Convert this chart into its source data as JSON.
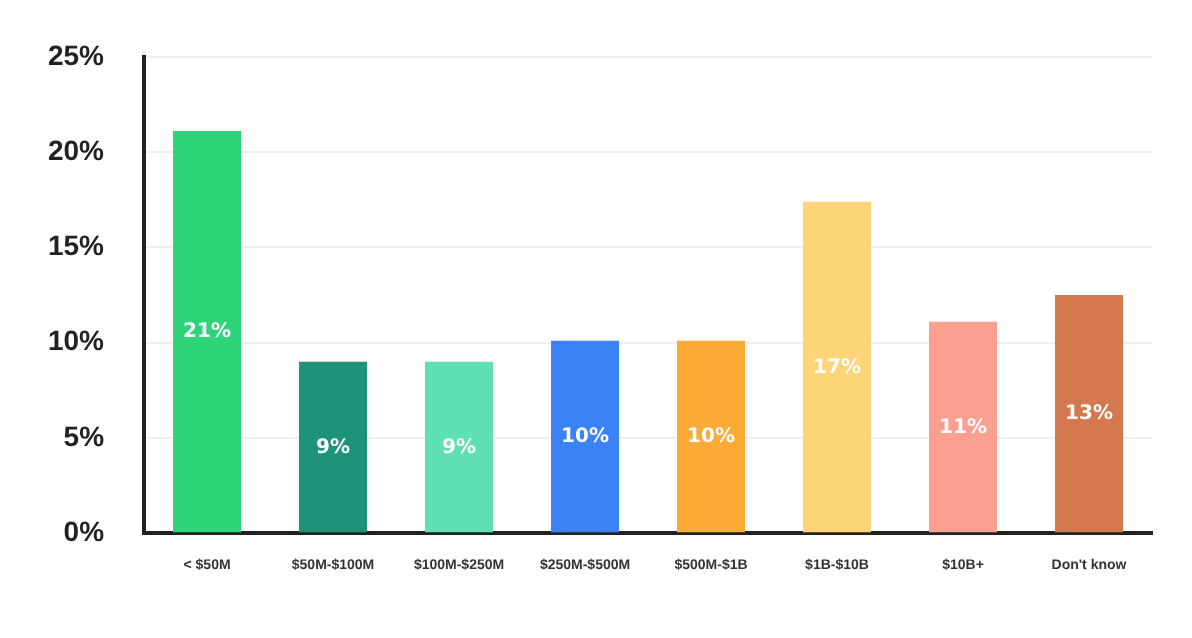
{
  "chart_data": {
    "type": "bar",
    "categories": [
      "< $50M",
      "$50M-$100M",
      "$100M-$250M",
      "$250M-$500M",
      "$500M-$1B",
      "$1B-$10B",
      "$10B+",
      "Don't know"
    ],
    "values": [
      21.1,
      9,
      9,
      10.1,
      10.1,
      17.4,
      11.1,
      12.5
    ],
    "value_labels": [
      "21%",
      "9%",
      "9%",
      "10%",
      "10%",
      "17%",
      "11%",
      "13%"
    ],
    "colors": [
      "#2ed47a",
      "#1f927a",
      "#5fdfb4",
      "#3b82f6",
      "#fbab37",
      "#fdd477",
      "#fb9f90",
      "#d4784f"
    ],
    "ylim": [
      0,
      25
    ],
    "yticks": [
      {
        "value": 0,
        "label": "0%"
      },
      {
        "value": 5,
        "label": "5%"
      },
      {
        "value": 10,
        "label": "10%"
      },
      {
        "value": 15,
        "label": "15%"
      },
      {
        "value": 20,
        "label": "20%"
      },
      {
        "value": 25,
        "label": "25%"
      }
    ],
    "grid": "y"
  }
}
